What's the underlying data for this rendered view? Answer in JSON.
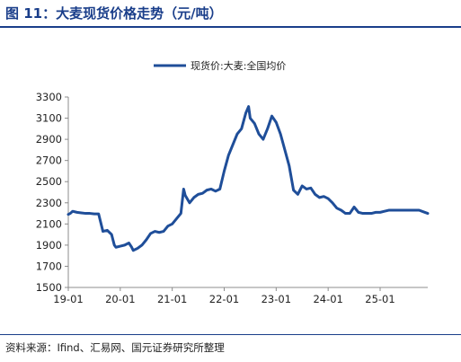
{
  "figure": {
    "title": "图 11：大麦现货价格走势（元/吨）",
    "source": "资料来源：Ifind、汇易网、国元证券研究所整理"
  },
  "chart_data": {
    "type": "line",
    "title": "图 11：大麦现货价格走势（元/吨）",
    "xlabel": "",
    "ylabel": "",
    "x_tick_labels": [
      "19-01",
      "20-01",
      "21-01",
      "22-01",
      "23-01",
      "24-01",
      "25-01"
    ],
    "y_ticks": [
      1500,
      1700,
      1900,
      2100,
      2300,
      2500,
      2700,
      2900,
      3100,
      3300
    ],
    "ylim": [
      1500,
      3300
    ],
    "xlim": [
      "2019-01",
      "2025-12"
    ],
    "grid": false,
    "legend_position": "top-center",
    "line_color": "#1f4e99",
    "series": [
      {
        "name": "现货价:大麦:全国均价",
        "points": [
          [
            "2019-01",
            2190
          ],
          [
            "2019-01-15",
            2200
          ],
          [
            "2019-02",
            2220
          ],
          [
            "2019-03",
            2210
          ],
          [
            "2019-04",
            2205
          ],
          [
            "2019-05",
            2200
          ],
          [
            "2019-06",
            2200
          ],
          [
            "2019-07",
            2195
          ],
          [
            "2019-08",
            2195
          ],
          [
            "2019-09",
            2030
          ],
          [
            "2019-10",
            2040
          ],
          [
            "2019-11",
            2000
          ],
          [
            "2019-11-20",
            1900
          ],
          [
            "2019-12",
            1880
          ],
          [
            "2020-01",
            1890
          ],
          [
            "2020-02",
            1900
          ],
          [
            "2020-03",
            1920
          ],
          [
            "2020-03-20",
            1880
          ],
          [
            "2020-04",
            1850
          ],
          [
            "2020-05",
            1870
          ],
          [
            "2020-06",
            1900
          ],
          [
            "2020-07",
            1950
          ],
          [
            "2020-08",
            2010
          ],
          [
            "2020-09",
            2030
          ],
          [
            "2020-10",
            2020
          ],
          [
            "2020-11",
            2030
          ],
          [
            "2020-12",
            2080
          ],
          [
            "2021-01",
            2100
          ],
          [
            "2021-02",
            2150
          ],
          [
            "2021-03",
            2200
          ],
          [
            "2021-03-20",
            2430
          ],
          [
            "2021-04",
            2370
          ],
          [
            "2021-05",
            2300
          ],
          [
            "2021-06",
            2350
          ],
          [
            "2021-07",
            2380
          ],
          [
            "2021-08",
            2390
          ],
          [
            "2021-09",
            2420
          ],
          [
            "2021-10",
            2430
          ],
          [
            "2021-11",
            2410
          ],
          [
            "2021-12",
            2430
          ],
          [
            "2022-01",
            2600
          ],
          [
            "2022-02",
            2750
          ],
          [
            "2022-03",
            2850
          ],
          [
            "2022-04",
            2950
          ],
          [
            "2022-05",
            3000
          ],
          [
            "2022-06",
            3150
          ],
          [
            "2022-06-20",
            3210
          ],
          [
            "2022-07",
            3100
          ],
          [
            "2022-08",
            3050
          ],
          [
            "2022-09",
            2950
          ],
          [
            "2022-10",
            2900
          ],
          [
            "2022-11",
            3000
          ],
          [
            "2022-12",
            3120
          ],
          [
            "2023-01",
            3060
          ],
          [
            "2023-02",
            2950
          ],
          [
            "2023-03",
            2800
          ],
          [
            "2023-04",
            2650
          ],
          [
            "2023-05",
            2420
          ],
          [
            "2023-06",
            2380
          ],
          [
            "2023-07",
            2460
          ],
          [
            "2023-08",
            2430
          ],
          [
            "2023-09",
            2440
          ],
          [
            "2023-10",
            2380
          ],
          [
            "2023-11",
            2350
          ],
          [
            "2023-12",
            2360
          ],
          [
            "2024-01",
            2340
          ],
          [
            "2024-02",
            2300
          ],
          [
            "2024-03",
            2250
          ],
          [
            "2024-04",
            2230
          ],
          [
            "2024-05",
            2200
          ],
          [
            "2024-06",
            2200
          ],
          [
            "2024-07",
            2260
          ],
          [
            "2024-08",
            2210
          ],
          [
            "2024-09",
            2200
          ],
          [
            "2024-10",
            2200
          ],
          [
            "2024-11",
            2200
          ],
          [
            "2024-12",
            2210
          ],
          [
            "2025-01",
            2210
          ],
          [
            "2025-02",
            2220
          ],
          [
            "2025-03",
            2230
          ],
          [
            "2025-04",
            2230
          ],
          [
            "2025-05",
            2230
          ],
          [
            "2025-06",
            2230
          ],
          [
            "2025-07",
            2230
          ],
          [
            "2025-08",
            2230
          ],
          [
            "2025-09",
            2230
          ],
          [
            "2025-10",
            2230
          ],
          [
            "2025-11",
            2215
          ],
          [
            "2025-12",
            2200
          ]
        ]
      }
    ]
  }
}
